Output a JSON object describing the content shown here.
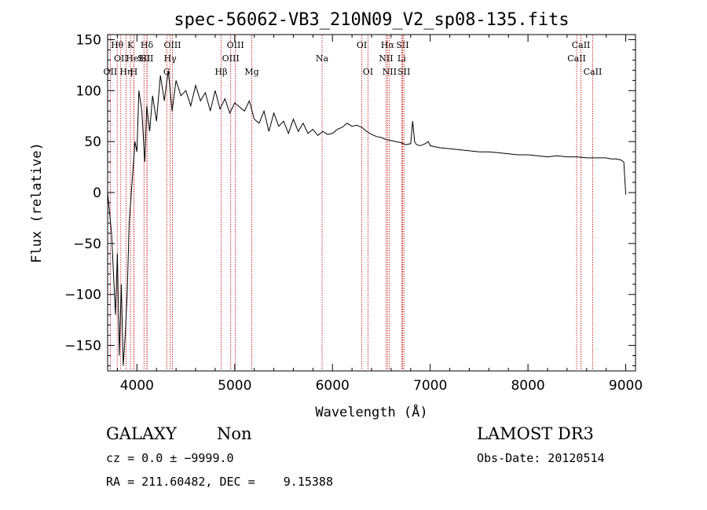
{
  "chart_data": {
    "type": "line",
    "title": "spec-56062-VB3_210N09_V2_sp08-135.fits",
    "xlabel": "Wavelength (Å)",
    "ylabel": "Flux (relative)",
    "xlim": [
      3700,
      9100
    ],
    "ylim": [
      -175,
      155
    ],
    "xticks": [
      4000,
      5000,
      6000,
      7000,
      8000,
      9000
    ],
    "xtick_labels": [
      "4000",
      "5000",
      "6000",
      "7000",
      "8000",
      "9000"
    ],
    "yticks": [
      -150,
      -100,
      -50,
      0,
      50,
      100,
      150
    ],
    "ytick_labels": [
      "−150",
      "−100",
      "−50",
      "0",
      "50",
      "100",
      "150"
    ],
    "series": [
      {
        "name": "flux",
        "x": [
          3700,
          3740,
          3780,
          3800,
          3820,
          3840,
          3860,
          3880,
          3900,
          3920,
          3950,
          3980,
          4000,
          4020,
          4050,
          4080,
          4100,
          4130,
          4160,
          4200,
          4240,
          4280,
          4320,
          4360,
          4400,
          4450,
          4500,
          4550,
          4600,
          4650,
          4700,
          4750,
          4800,
          4850,
          4900,
          4950,
          5000,
          5050,
          5100,
          5150,
          5200,
          5250,
          5300,
          5350,
          5400,
          5450,
          5500,
          5550,
          5600,
          5650,
          5700,
          5750,
          5800,
          5850,
          5900,
          5950,
          6000,
          6050,
          6100,
          6150,
          6200,
          6250,
          6300,
          6350,
          6400,
          6450,
          6500,
          6550,
          6600,
          6650,
          6700,
          6750,
          6800,
          6820,
          6840,
          6860,
          6900,
          6950,
          6980,
          7000,
          7050,
          7100,
          7200,
          7300,
          7400,
          7500,
          7600,
          7700,
          7800,
          7900,
          8000,
          8100,
          8200,
          8300,
          8400,
          8500,
          8600,
          8700,
          8800,
          8850,
          8900,
          8950,
          8980,
          9000
        ],
        "y": [
          0,
          -40,
          -120,
          -60,
          -160,
          -90,
          -170,
          -140,
          -100,
          -30,
          10,
          50,
          40,
          100,
          80,
          30,
          85,
          60,
          95,
          70,
          115,
          90,
          120,
          80,
          110,
          95,
          100,
          85,
          105,
          90,
          98,
          80,
          100,
          82,
          92,
          78,
          88,
          84,
          80,
          90,
          72,
          68,
          80,
          60,
          78,
          65,
          70,
          58,
          72,
          60,
          68,
          58,
          62,
          56,
          60,
          57,
          58,
          62,
          64,
          68,
          65,
          66,
          64,
          60,
          57,
          55,
          54,
          52,
          51,
          50,
          49,
          47,
          48,
          70,
          50,
          47,
          46,
          48,
          50,
          46,
          45,
          44,
          43,
          42,
          41,
          40,
          40,
          39,
          38,
          37,
          37,
          36,
          35,
          36,
          35,
          35,
          34,
          34,
          34,
          33,
          33,
          32,
          30,
          -2
        ]
      }
    ],
    "line_markers": [
      {
        "label": "OII",
        "wavelength": 3727,
        "row": 2
      },
      {
        "label": "Hθ",
        "wavelength": 3798,
        "row": 0
      },
      {
        "label": "OII",
        "wavelength": 3835,
        "row": 1
      },
      {
        "label": "Hη",
        "wavelength": 3889,
        "row": 2
      },
      {
        "label": "HeI",
        "wavelength": 3970,
        "row": 1
      },
      {
        "label": "K",
        "wavelength": 3934,
        "row": 0
      },
      {
        "label": "H",
        "wavelength": 3969,
        "row": 2
      },
      {
        "label": "SII",
        "wavelength": 4072,
        "row": 1
      },
      {
        "label": "Hδ",
        "wavelength": 4102,
        "row": 0
      },
      {
        "label": "SII",
        "wavelength": 4104,
        "row": 1
      },
      {
        "label": "G",
        "wavelength": 4305,
        "row": 2
      },
      {
        "label": "OIII",
        "wavelength": 4363,
        "row": 0
      },
      {
        "label": "Hγ",
        "wavelength": 4340,
        "row": 1
      },
      {
        "label": "Hβ",
        "wavelength": 4861,
        "row": 2
      },
      {
        "label": "OIII",
        "wavelength": 4959,
        "row": 1
      },
      {
        "label": "OIII",
        "wavelength": 5007,
        "row": 0
      },
      {
        "label": "Mg",
        "wavelength": 5175,
        "row": 2
      },
      {
        "label": "Na",
        "wavelength": 5894,
        "row": 1
      },
      {
        "label": "OI",
        "wavelength": 6300,
        "row": 0
      },
      {
        "label": "OI",
        "wavelength": 6363,
        "row": 2
      },
      {
        "label": "NII",
        "wavelength": 6548,
        "row": 1
      },
      {
        "label": "Hα",
        "wavelength": 6563,
        "row": 0
      },
      {
        "label": "NII",
        "wavelength": 6583,
        "row": 2
      },
      {
        "label": "SII",
        "wavelength": 6717,
        "row": 0
      },
      {
        "label": "Li",
        "wavelength": 6708,
        "row": 1
      },
      {
        "label": "SII",
        "wavelength": 6731,
        "row": 2
      },
      {
        "label": "CaII",
        "wavelength": 8498,
        "row": 1
      },
      {
        "label": "CaII",
        "wavelength": 8542,
        "row": 0
      },
      {
        "label": "CaII",
        "wavelength": 8662,
        "row": 2
      }
    ]
  },
  "info": {
    "class": "GALAXY",
    "subclass": "Non",
    "survey": "LAMOST DR3",
    "cz": "cz = 0.0 ± −9999.0",
    "obs_date": "Obs-Date: 20120514",
    "coords": "RA = 211.60482, DEC =    9.15388"
  },
  "colors": {
    "spectrum": "#000000",
    "markers": "#c00000",
    "axes": "#000000",
    "background": "#ffffff"
  }
}
